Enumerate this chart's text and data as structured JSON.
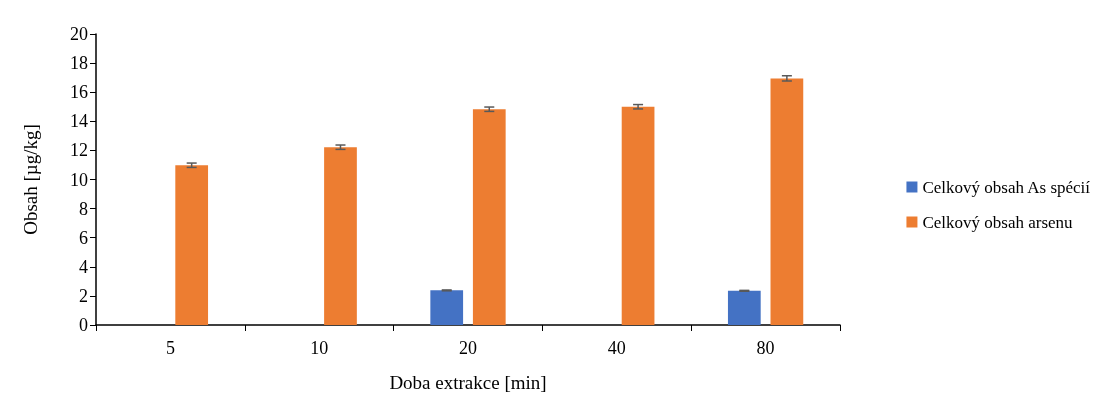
{
  "chart_data": {
    "type": "bar",
    "xlabel": "Doba extrakce [min]",
    "ylabel": "Obsah [µg/kg]",
    "categories": [
      "5",
      "10",
      "20",
      "40",
      "80"
    ],
    "series": [
      {
        "name": "Celkový obsah As spécií",
        "color": "#4472c4",
        "values": [
          0,
          0,
          2.38,
          0,
          2.35
        ],
        "errors": [
          null,
          null,
          0.03,
          null,
          0.03
        ]
      },
      {
        "name": "Celkový obsah arsenu",
        "color": "#ed7d31",
        "values": [
          10.98,
          12.22,
          14.83,
          15.0,
          16.95
        ],
        "errors": [
          0.15,
          0.15,
          0.15,
          0.15,
          0.18
        ]
      }
    ],
    "ylim": [
      0,
      20
    ],
    "yticks": [
      0,
      2,
      4,
      6,
      8,
      10,
      12,
      14,
      16,
      18,
      20
    ],
    "grid": false,
    "legend": "right"
  }
}
